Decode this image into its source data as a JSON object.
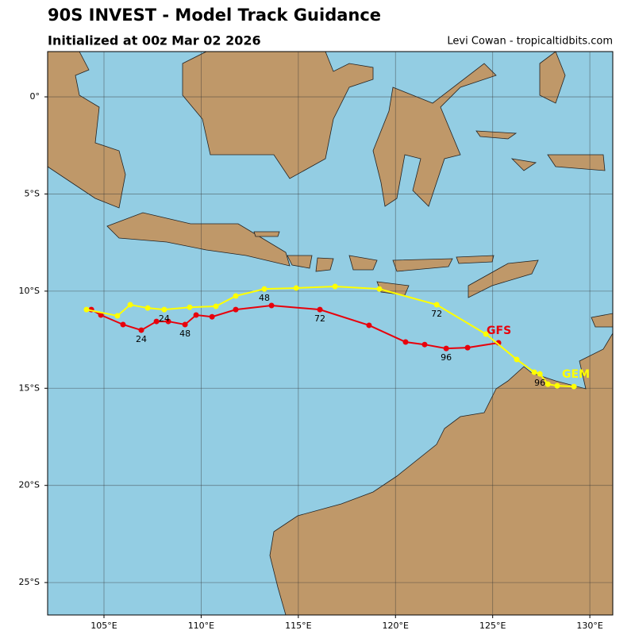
{
  "chart_data": {
    "type": "track-map",
    "title": "90S INVEST - Model Track Guidance",
    "subtitle": "Initialized at 00z Mar 02 2026",
    "credit": "Levi Cowan - tropicaltidbits.com",
    "xlim": [
      102.1,
      131.18
    ],
    "ylim": [
      -26.67,
      2.33
    ],
    "xticks": [
      {
        "value": 105,
        "label": "105°E"
      },
      {
        "value": 110,
        "label": "110°E"
      },
      {
        "value": 115,
        "label": "115°E"
      },
      {
        "value": 120,
        "label": "120°E"
      },
      {
        "value": 125,
        "label": "125°E"
      },
      {
        "value": 130,
        "label": "130°E"
      }
    ],
    "yticks": [
      {
        "value": 0,
        "label": "0°"
      },
      {
        "value": -5,
        "label": "5°S"
      },
      {
        "value": -10,
        "label": "10°S"
      },
      {
        "value": -15,
        "label": "15°S"
      },
      {
        "value": -20,
        "label": "20°S"
      },
      {
        "value": -25,
        "label": "25°S"
      }
    ],
    "grid": true,
    "series": [
      {
        "name": "GFS",
        "color": "#e8000b",
        "x": [
          104.35,
          104.84,
          105.98,
          106.92,
          107.7,
          108.31,
          109.17,
          109.74,
          110.56,
          111.78,
          113.62,
          116.11,
          118.64,
          120.52,
          121.5,
          122.61,
          123.71,
          125.3
        ],
        "values": [
          -10.95,
          -11.23,
          -11.72,
          -12.01,
          -11.56,
          -11.56,
          -11.72,
          -11.23,
          -11.32,
          -10.95,
          -10.74,
          -10.95,
          -11.76,
          -12.62,
          -12.75,
          -12.95,
          -12.91,
          -12.66
        ],
        "hour_labels": [
          null,
          null,
          null,
          "24",
          null,
          null,
          "48",
          null,
          null,
          null,
          null,
          "72",
          null,
          null,
          null,
          "96",
          null,
          null
        ]
      },
      {
        "name": "GEM",
        "color": "#ffff00",
        "x": [
          104.1,
          105.69,
          106.35,
          107.25,
          108.1,
          109.41,
          110.76,
          111.78,
          113.25,
          114.89,
          116.89,
          119.17,
          122.12,
          124.65,
          126.24,
          127.14,
          127.43,
          127.84,
          128.32,
          129.18
        ],
        "values": [
          -10.95,
          -11.27,
          -10.7,
          -10.87,
          -10.95,
          -10.83,
          -10.78,
          -10.25,
          -9.89,
          -9.84,
          -9.76,
          -9.89,
          -10.7,
          -12.21,
          -13.52,
          -14.17,
          -14.26,
          -14.79,
          -14.87,
          -14.91
        ],
        "hour_labels": [
          null,
          null,
          null,
          null,
          "24",
          null,
          null,
          null,
          "48",
          null,
          null,
          null,
          "72",
          null,
          null,
          null,
          "96",
          null,
          null,
          null
        ]
      }
    ]
  }
}
